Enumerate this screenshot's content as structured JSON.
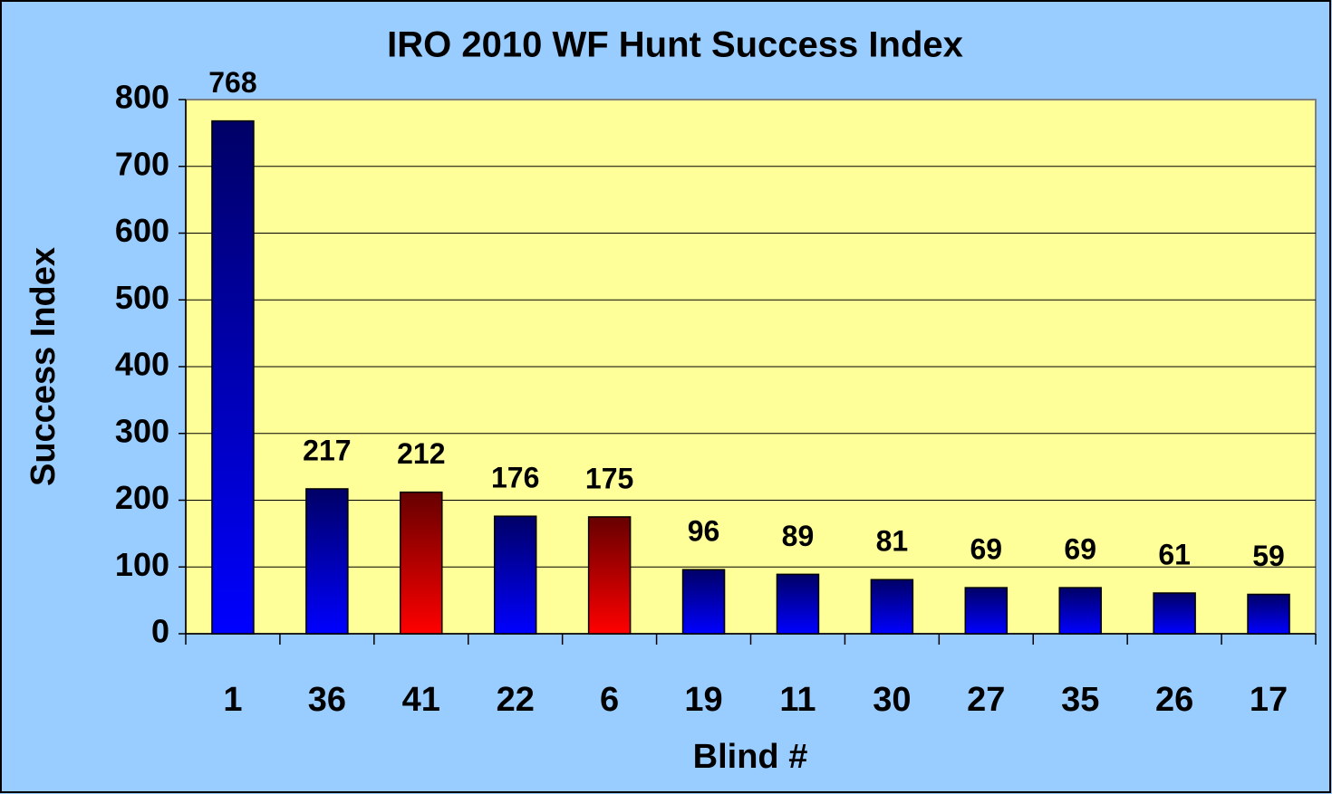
{
  "chart_data": {
    "type": "bar",
    "title": "IRO 2010 WF Hunt Success Index",
    "x_label": "Blind #",
    "y_label": "Success Index",
    "categories": [
      "1",
      "36",
      "41",
      "22",
      "6",
      "19",
      "11",
      "30",
      "27",
      "35",
      "26",
      "17"
    ],
    "values": [
      768,
      217,
      212,
      176,
      175,
      96,
      89,
      81,
      69,
      69,
      61,
      59
    ],
    "colors": [
      "#0000ff",
      "#0000ff",
      "#ff0000",
      "#0000ff",
      "#ff0000",
      "#0000ff",
      "#0000ff",
      "#0000ff",
      "#0000ff",
      "#0000ff",
      "#0000ff",
      "#0000ff"
    ],
    "ylim": [
      0,
      800
    ],
    "yticks": [
      0,
      100,
      200,
      300,
      400,
      500,
      600,
      700,
      800
    ],
    "grid": true
  }
}
